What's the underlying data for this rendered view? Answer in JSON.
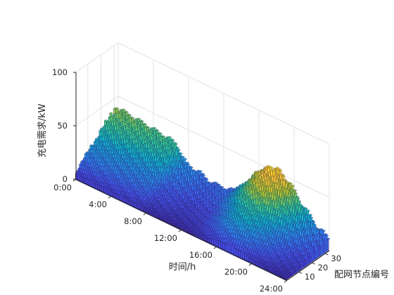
{
  "chart_data": {
    "type": "3d-stepped-surface",
    "title": "",
    "xlabel": "时间/h",
    "ylabel": "配网节点编号",
    "zlabel": "充电需求/kW",
    "xlim": [
      0,
      24
    ],
    "ylim": [
      1,
      33
    ],
    "zlim": [
      0,
      100
    ],
    "x_ticks": [
      0,
      4,
      8,
      12,
      16,
      20,
      24
    ],
    "x_tick_labels": [
      "0:00",
      "4:00",
      "8:00",
      "12:00",
      "16:00",
      "20:00",
      "24:00"
    ],
    "y_ticks": [
      10,
      20,
      30
    ],
    "y_tick_labels": [
      "10",
      "20",
      "30"
    ],
    "z_ticks": [
      0,
      50,
      100
    ],
    "z_tick_labels": [
      "0",
      "50",
      "100"
    ],
    "colormap": "parula",
    "grid": true,
    "time_step_h": 0.25,
    "node_count": 33,
    "profile_knots": {
      "hours": [
        0,
        1,
        2,
        3,
        4,
        5,
        6,
        7,
        7.5,
        8,
        9,
        10,
        11,
        12,
        13,
        14,
        15,
        16,
        17,
        18,
        19,
        20,
        21,
        22,
        23,
        24
      ],
      "values": [
        38,
        37,
        36,
        35,
        34,
        33,
        32,
        30,
        20,
        16,
        15,
        12,
        10,
        11,
        12,
        20,
        30,
        42,
        50,
        52,
        46,
        36,
        26,
        18,
        12,
        10
      ]
    },
    "node_scale": {
      "nodes": [
        1,
        4,
        8,
        12,
        16,
        20,
        24,
        28,
        30,
        33
      ],
      "factors": [
        0.15,
        0.3,
        0.45,
        0.55,
        0.62,
        0.8,
        0.92,
        1.0,
        1.05,
        1.0
      ]
    }
  }
}
